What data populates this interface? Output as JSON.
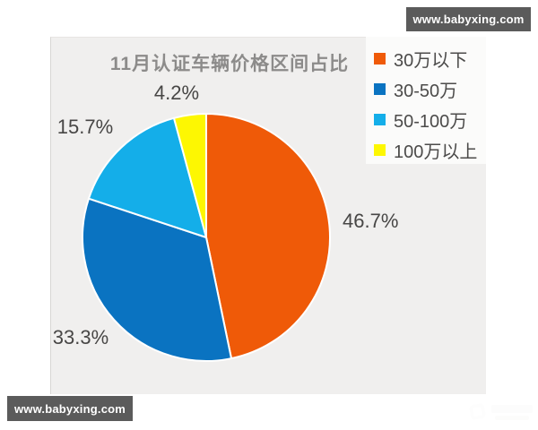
{
  "site_badge": {
    "url_text": "www.babyxing.com",
    "background": "#5b5b5b",
    "text_color": "#ffffff"
  },
  "panel": {
    "background": "#f0efee"
  },
  "chart_data": {
    "type": "pie",
    "title": "11月认证车辆价格区间占比",
    "start_angle_deg": 0,
    "direction": "clockwise",
    "legend_position": "top-right",
    "slice_stroke_color": "#ffffff",
    "title_color": "#8c8b8a",
    "label_color": "#474645",
    "series": [
      {
        "name": "30万以下",
        "value": 46.7,
        "label": "46.7%",
        "color": "#ef5a08"
      },
      {
        "name": "30-50万",
        "value": 33.3,
        "label": "33.3%",
        "color": "#0a73c1"
      },
      {
        "name": "50-100万",
        "value": 15.7,
        "label": "15.7%",
        "color": "#14aee9"
      },
      {
        "name": "100万以上",
        "value": 4.2,
        "label": "4.2%",
        "color": "#fdf702"
      }
    ]
  }
}
